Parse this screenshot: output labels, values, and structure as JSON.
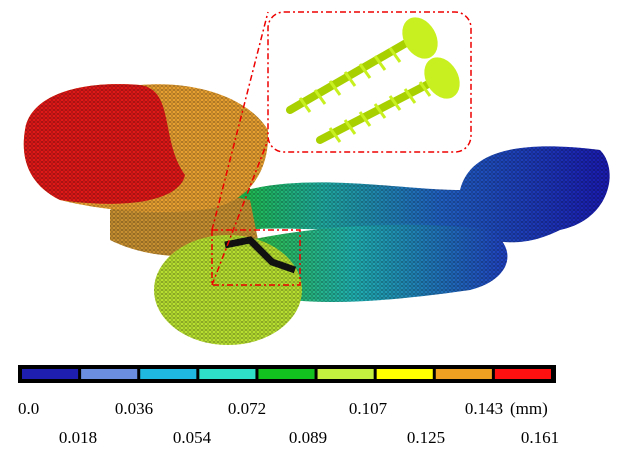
{
  "colorbar": {
    "colors": [
      "#1e1eb0",
      "#6b8ee0",
      "#1fb8e0",
      "#2ee0c8",
      "#12c21e",
      "#c4f040",
      "#ffff00",
      "#f0a020",
      "#ff1010"
    ],
    "labels_top": [
      "0.0",
      "0.036",
      "0.072",
      "0.107",
      "0.143"
    ],
    "labels_bottom": [
      "0.018",
      "0.054",
      "0.089",
      "0.125",
      "0.161"
    ],
    "unit": "(mm)"
  }
}
